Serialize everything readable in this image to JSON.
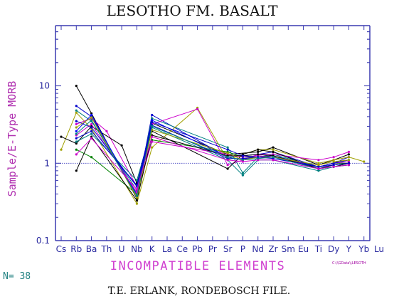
{
  "chart_data": {
    "type": "line",
    "title": "LESOTHO FM. BASALT",
    "ylabel": "Sample/E-Type MORB",
    "xlabel": "INCOMPATIBLE ELEMENTS",
    "yscale": "log",
    "ylim": [
      0.1,
      60
    ],
    "yticks": [
      "0.1",
      "1",
      "10"
    ],
    "categories": [
      "Cs",
      "Rb",
      "Ba",
      "Th",
      "U",
      "Nb",
      "K",
      "La",
      "Ce",
      "Pb",
      "Pr",
      "Sr",
      "P",
      "Nd",
      "Zr",
      "Sm",
      "Eu",
      "Ti",
      "Dy",
      "Y",
      "Yb",
      "Lu"
    ],
    "reference_line": 1,
    "series": [
      {
        "color": "#000000",
        "values": [
          null,
          10,
          4.4,
          null,
          null,
          0.35,
          3.3,
          null,
          null,
          null,
          null,
          1.3,
          null,
          1.4,
          1.6,
          null,
          null,
          0.95,
          1.1,
          1.3,
          null,
          null
        ]
      },
      {
        "color": "#0000cc",
        "values": [
          null,
          5.5,
          4,
          null,
          null,
          0.4,
          4.2,
          null,
          null,
          null,
          null,
          1.2,
          null,
          1.3,
          1.4,
          null,
          null,
          0.9,
          1,
          1.2,
          null,
          null
        ]
      },
      {
        "color": "#008080",
        "values": [
          null,
          4.8,
          3.5,
          null,
          null,
          0.45,
          3.8,
          null,
          null,
          null,
          null,
          1.6,
          0.75,
          1.2,
          1.3,
          null,
          null,
          0.9,
          1,
          1.1,
          null,
          null
        ]
      },
      {
        "color": "#a0a000",
        "values": [
          1.5,
          4.5,
          2.8,
          null,
          null,
          0.3,
          1.6,
          null,
          null,
          5.2,
          null,
          1.1,
          1.3,
          1.5,
          1.5,
          null,
          null,
          1,
          1.1,
          1.2,
          1.05,
          null
        ]
      },
      {
        "color": "#cc00cc",
        "values": [
          null,
          3.2,
          3.8,
          2.6,
          null,
          0.5,
          3.2,
          null,
          null,
          5,
          null,
          0.95,
          1.1,
          1.3,
          1.3,
          null,
          null,
          1.1,
          1.2,
          1.4,
          null,
          null
        ]
      },
      {
        "color": "#000000",
        "values": [
          2.2,
          1.8,
          3,
          null,
          1.7,
          0.55,
          2.6,
          null,
          null,
          null,
          null,
          0.85,
          1.3,
          1.5,
          1.4,
          null,
          null,
          0.85,
          0.9,
          1,
          null,
          null
        ]
      },
      {
        "color": "#008000",
        "values": [
          null,
          1.5,
          1.2,
          null,
          null,
          0.4,
          2,
          null,
          null,
          null,
          null,
          1.4,
          1.2,
          1.2,
          1.2,
          null,
          null,
          0.9,
          1,
          1,
          null,
          null
        ]
      },
      {
        "color": "#0000ff",
        "values": [
          null,
          2.6,
          4.2,
          null,
          null,
          0.38,
          3.6,
          null,
          null,
          null,
          null,
          1.2,
          1.1,
          1.2,
          1.2,
          null,
          null,
          0.85,
          0.95,
          1,
          null,
          null
        ]
      },
      {
        "color": "#008080",
        "values": [
          null,
          1.9,
          2.4,
          null,
          null,
          0.6,
          2.9,
          null,
          null,
          null,
          null,
          1.1,
          0.7,
          1.1,
          1.1,
          null,
          null,
          0.8,
          0.9,
          0.95,
          null,
          null
        ]
      },
      {
        "color": "#cc00cc",
        "values": [
          null,
          2.3,
          3.2,
          null,
          null,
          0.42,
          1.9,
          null,
          null,
          null,
          null,
          1.3,
          1.2,
          1.25,
          1.2,
          null,
          null,
          0.9,
          1,
          1.05,
          null,
          null
        ]
      },
      {
        "color": "#0000cc",
        "values": [
          null,
          3.5,
          2.9,
          null,
          null,
          0.5,
          3.1,
          null,
          null,
          null,
          null,
          1.15,
          1.15,
          1.2,
          1.25,
          null,
          null,
          0.9,
          1,
          1.1,
          null,
          null
        ]
      },
      {
        "color": "#000000",
        "values": [
          null,
          0.8,
          2.2,
          null,
          null,
          0.33,
          2.3,
          null,
          null,
          null,
          null,
          1.25,
          1.25,
          1.3,
          1.25,
          null,
          null,
          0.85,
          0.95,
          1,
          null,
          null
        ]
      },
      {
        "color": "#a0a000",
        "values": [
          null,
          2.9,
          3.9,
          null,
          null,
          0.36,
          2.7,
          null,
          null,
          null,
          null,
          1.35,
          1.1,
          1.2,
          1.2,
          null,
          null,
          0.95,
          1.05,
          1.1,
          null,
          null
        ]
      },
      {
        "color": "#0000cc",
        "values": [
          null,
          2.1,
          2.6,
          null,
          null,
          0.52,
          3.4,
          null,
          null,
          null,
          null,
          1.5,
          1.25,
          1.2,
          1.15,
          null,
          null,
          0.9,
          0.95,
          1,
          null,
          null
        ]
      },
      {
        "color": "#008080",
        "values": [
          null,
          2.4,
          3.6,
          null,
          null,
          0.38,
          3,
          null,
          null,
          null,
          null,
          1.2,
          1.1,
          1.15,
          1.2,
          null,
          null,
          0.85,
          0.9,
          0.95,
          null,
          null
        ]
      },
      {
        "color": "#cc00cc",
        "values": [
          null,
          1.3,
          2.1,
          null,
          null,
          0.46,
          2.2,
          null,
          null,
          null,
          null,
          1.1,
          1.05,
          1.1,
          1.1,
          null,
          null,
          0.85,
          0.9,
          0.95,
          null,
          null
        ]
      }
    ]
  },
  "n_count": "N= 38",
  "footer": "T.E. ERLANK, RONDEBOSCH FILE.",
  "filename": "C:\\\\GData\\\\LESOTH"
}
